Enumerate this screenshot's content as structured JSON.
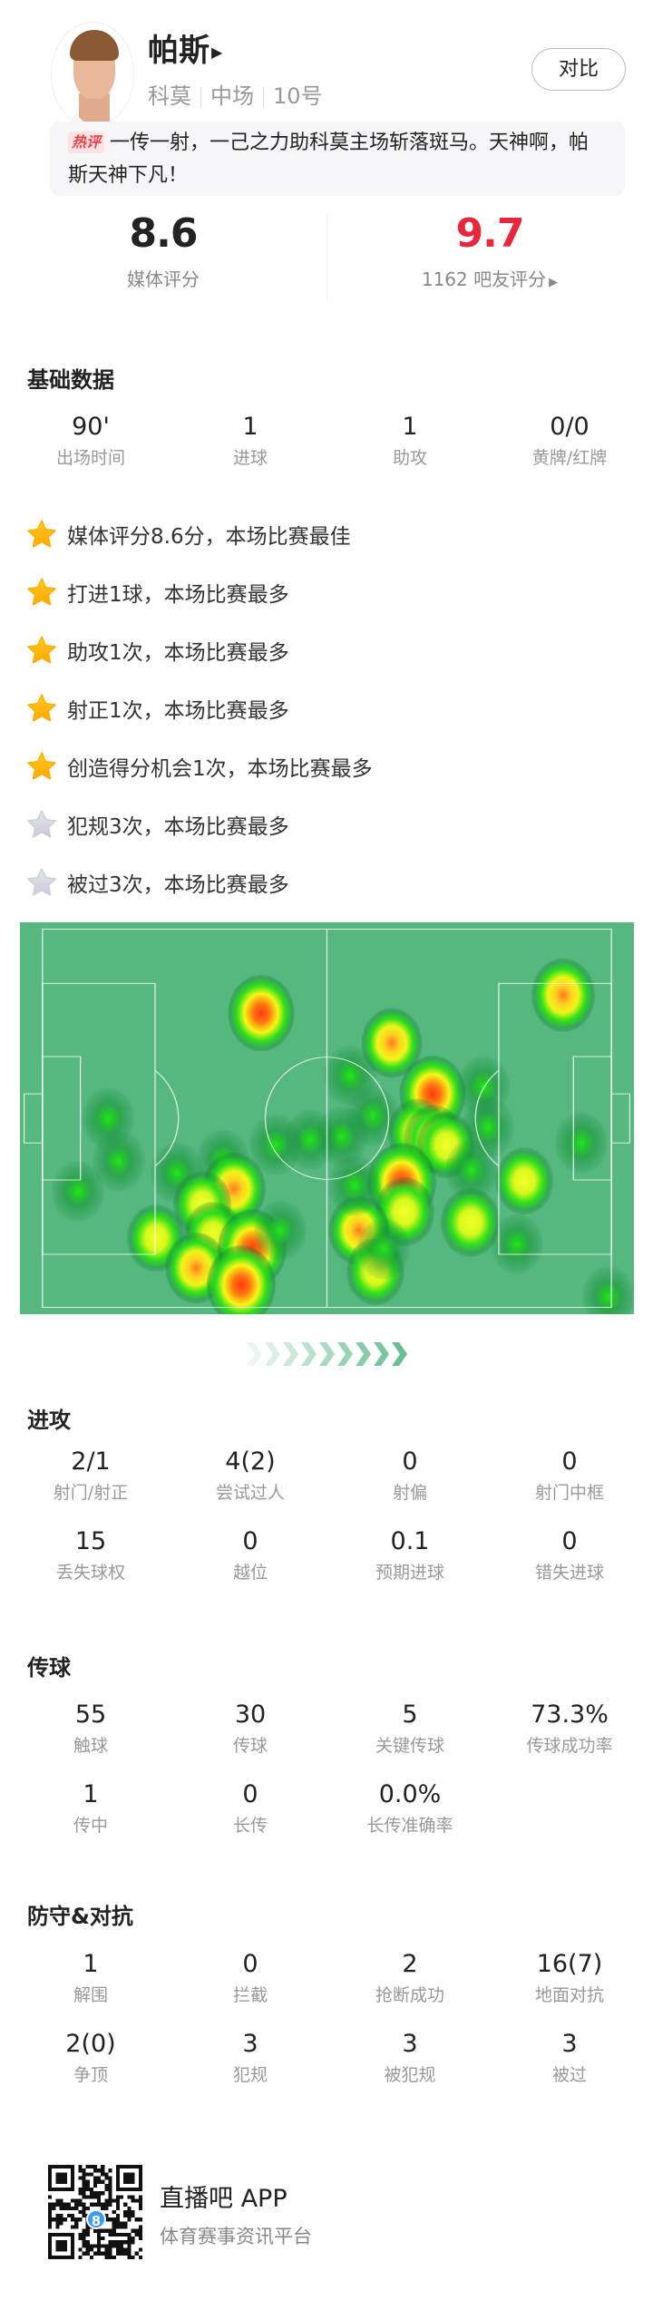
{
  "player": {
    "name": "帕斯",
    "team": "科莫",
    "position": "中场",
    "number": "10号",
    "compare_label": "对比"
  },
  "comment": {
    "badge": "热评",
    "text": "一传一射，一己之力助科莫主场斩落斑马。天神啊，帕斯天神下凡！"
  },
  "ratings": {
    "media": {
      "value": "8.6",
      "label": "媒体评分"
    },
    "fans": {
      "value": "9.7",
      "label": "1162 吧友评分",
      "color": "#e8263c"
    }
  },
  "basic": {
    "title": "基础数据",
    "stats": [
      {
        "value": "90'",
        "label": "出场时间"
      },
      {
        "value": "1",
        "label": "进球"
      },
      {
        "value": "1",
        "label": "助攻"
      },
      {
        "value": "0/0",
        "label": "黄牌/红牌"
      }
    ]
  },
  "highlights": [
    {
      "text": "媒体评分8.6分，本场比赛最佳",
      "star": "gold"
    },
    {
      "text": "打进1球，本场比赛最多",
      "star": "gold"
    },
    {
      "text": "助攻1次，本场比赛最多",
      "star": "gold"
    },
    {
      "text": "射正1次，本场比赛最多",
      "star": "gold"
    },
    {
      "text": "创造得分机会1次，本场比赛最多",
      "star": "gold"
    },
    {
      "text": "犯规3次，本场比赛最多",
      "star": "gray"
    },
    {
      "text": "被过3次，本场比赛最多",
      "star": "gray"
    }
  ],
  "attack": {
    "title": "进攻",
    "stats": [
      {
        "value": "2/1",
        "label": "射门/射正"
      },
      {
        "value": "4(2)",
        "label": "尝试过人"
      },
      {
        "value": "0",
        "label": "射偏"
      },
      {
        "value": "0",
        "label": "射门中框"
      },
      {
        "value": "15",
        "label": "丢失球权"
      },
      {
        "value": "0",
        "label": "越位"
      },
      {
        "value": "0.1",
        "label": "预期进球"
      },
      {
        "value": "0",
        "label": "错失进球"
      }
    ]
  },
  "passing": {
    "title": "传球",
    "stats": [
      {
        "value": "55",
        "label": "触球"
      },
      {
        "value": "30",
        "label": "传球"
      },
      {
        "value": "5",
        "label": "关键传球"
      },
      {
        "value": "73.3%",
        "label": "传球成功率"
      },
      {
        "value": "1",
        "label": "传中"
      },
      {
        "value": "0",
        "label": "长传"
      },
      {
        "value": "0.0%",
        "label": "长传准确率"
      }
    ]
  },
  "defense": {
    "title": "防守&对抗",
    "stats": [
      {
        "value": "1",
        "label": "解围"
      },
      {
        "value": "0",
        "label": "拦截"
      },
      {
        "value": "2",
        "label": "抢断成功"
      },
      {
        "value": "16(7)",
        "label": "地面对抗"
      },
      {
        "value": "2(0)",
        "label": "争顶"
      },
      {
        "value": "3",
        "label": "犯规"
      },
      {
        "value": "3",
        "label": "被犯规"
      },
      {
        "value": "3",
        "label": "被过"
      }
    ]
  },
  "footer": {
    "app_name": "直播吧 APP",
    "tagline": "体育赛事资讯平台",
    "qr_badge": "8"
  },
  "colors": {
    "pitch": "#56b87f",
    "star_gold": "#ffb400",
    "star_gray": "#d3d7df",
    "accent_red": "#e8263c"
  }
}
